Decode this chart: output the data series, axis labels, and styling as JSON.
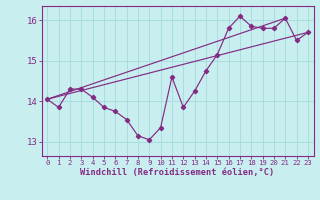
{
  "xlabel": "Windchill (Refroidissement éolien,°C)",
  "bg_color": "#c8eef0",
  "line_color": "#832b82",
  "grid_color": "#aadddd",
  "spine_color": "#832b82",
  "xlim": [
    -0.5,
    23.5
  ],
  "ylim": [
    12.65,
    16.35
  ],
  "yticks": [
    13,
    14,
    15,
    16
  ],
  "xticks": [
    0,
    1,
    2,
    3,
    4,
    5,
    6,
    7,
    8,
    9,
    10,
    11,
    12,
    13,
    14,
    15,
    16,
    17,
    18,
    19,
    20,
    21,
    22,
    23
  ],
  "series1_x": [
    0,
    1,
    2,
    3,
    4,
    5,
    6,
    7,
    8,
    9,
    10,
    11,
    12,
    13,
    14,
    15,
    16,
    17,
    18,
    19,
    20,
    21,
    22,
    23
  ],
  "series1_y": [
    14.05,
    13.85,
    14.3,
    14.3,
    14.1,
    13.85,
    13.75,
    13.55,
    13.15,
    13.05,
    13.35,
    14.6,
    13.85,
    14.25,
    14.75,
    15.15,
    15.8,
    16.1,
    15.85,
    15.8,
    15.8,
    16.05,
    15.5,
    15.7
  ],
  "trend1_x": [
    0,
    23
  ],
  "trend1_y": [
    14.05,
    15.7
  ],
  "trend2_x": [
    0,
    21
  ],
  "trend2_y": [
    14.05,
    16.05
  ]
}
